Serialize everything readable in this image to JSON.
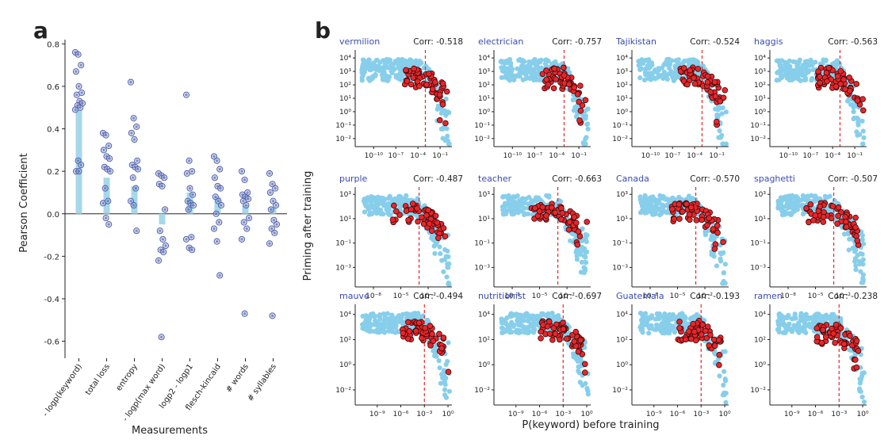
{
  "colors": {
    "bar": "#a6d8ea",
    "dot_fill": "#9aa8d8",
    "dot_stroke": "#4a5aa8",
    "light_blue": "#87ceeb",
    "red": "#e8262b",
    "red_stroke": "#3a0a0a",
    "title_blue": "#3a4bb0",
    "vline": "#e8262b"
  },
  "panel_a": {
    "letter": "a",
    "ylabel": "Pearson Coefficient",
    "xlabel": "Measurements",
    "y_ticks": [
      "0.8",
      "0.6",
      "0.4",
      "0.2",
      "0.0",
      "-0.2",
      "-0.4",
      "-0.6"
    ],
    "chart_data": {
      "type": "bar",
      "categories": [
        "- logp(keyword)",
        "total loss",
        "entropy",
        "- logp(max word)",
        "logp2 - logp1",
        "flesch-kincaid",
        "# words",
        "# syllables"
      ],
      "values": [
        0.49,
        0.17,
        0.13,
        -0.05,
        0.1,
        0.08,
        0.04,
        0.03
      ],
      "ylim": [
        -0.68,
        0.82
      ],
      "points": [
        [
          0.76,
          0.75,
          0.7,
          0.67,
          0.6,
          0.57,
          0.56,
          0.53,
          0.52,
          0.51,
          0.5,
          0.49,
          0.25,
          0.23,
          0.2,
          0.2
        ],
        [
          0.38,
          0.37,
          0.32,
          0.3,
          0.27,
          0.26,
          0.22,
          0.21,
          0.2,
          0.12,
          0.06,
          0.05,
          -0.02,
          -0.05
        ],
        [
          0.62,
          0.45,
          0.41,
          0.38,
          0.35,
          0.25,
          0.23,
          0.22,
          0.21,
          0.17,
          0.12,
          0.06,
          0.04,
          -0.08
        ],
        [
          0.19,
          0.18,
          0.17,
          0.14,
          0.13,
          0.02,
          -0.08,
          -0.12,
          -0.15,
          -0.17,
          -0.18,
          -0.22,
          -0.58
        ],
        [
          0.56,
          0.25,
          0.2,
          0.19,
          0.12,
          0.09,
          0.06,
          0.05,
          0.04,
          0.02,
          -0.11,
          -0.12,
          -0.16,
          -0.17
        ],
        [
          0.27,
          0.25,
          0.21,
          0.17,
          0.13,
          0.12,
          0.08,
          0.06,
          0.04,
          0.0,
          -0.04,
          -0.07,
          -0.13,
          -0.29
        ],
        [
          0.2,
          0.16,
          0.1,
          0.09,
          0.08,
          0.07,
          0.06,
          0.04,
          -0.02,
          -0.04,
          -0.07,
          -0.12,
          -0.47
        ],
        [
          0.19,
          0.14,
          0.12,
          0.1,
          0.06,
          0.04,
          0.02,
          -0.03,
          -0.05,
          -0.07,
          -0.09,
          -0.14,
          -0.48
        ]
      ]
    }
  },
  "panel_b": {
    "letter": "b",
    "ylabel": "Priming after training",
    "xlabel": "P(keyword) before training",
    "corr_prefix": "Corr: ",
    "rows": [
      {
        "xlim": [
          -12.5,
          0.6
        ],
        "ylim": [
          -2.6,
          4.6
        ],
        "x_ticks": [
          -10,
          -7,
          -4,
          -1
        ],
        "y_ticks": [
          -2,
          -1,
          0,
          1,
          2,
          3,
          4
        ],
        "panels": [
          {
            "word": "vermilion",
            "corr": "-0.518",
            "vline": -3.0
          },
          {
            "word": "electrician",
            "corr": "-0.757",
            "vline": -3.0
          },
          {
            "word": "Tajikistan",
            "corr": "-0.524",
            "vline": -3.0
          },
          {
            "word": "haggis",
            "corr": "-0.563",
            "vline": -3.0
          }
        ]
      },
      {
        "xlim": [
          -10.0,
          0.6
        ],
        "ylim": [
          -4.6,
          3.6
        ],
        "x_ticks": [
          -8,
          -5,
          -2
        ],
        "y_ticks": [
          -3,
          -1,
          1,
          3
        ],
        "panels": [
          {
            "word": "purple",
            "corr": "-0.487",
            "vline": -3.0
          },
          {
            "word": "teacher",
            "corr": "-0.663",
            "vline": -3.0
          },
          {
            "word": "Canada",
            "corr": "-0.570",
            "vline": -3.0
          },
          {
            "word": "spaghetti",
            "corr": "-0.507",
            "vline": -3.0
          }
        ]
      },
      {
        "xlim": [
          -11.8,
          0.5
        ],
        "ylim": [
          -3.2,
          4.8
        ],
        "x_ticks": [
          -9,
          -6,
          -3,
          0
        ],
        "y_ticks": [
          -2,
          0,
          2,
          4
        ],
        "panels": [
          {
            "word": "mauve",
            "corr": "-0.494",
            "vline": -3.0
          },
          {
            "word": "nutritionist",
            "corr": "-0.697",
            "vline": -3.0
          },
          {
            "word": "Guatemala",
            "corr": "-0.193",
            "vline": -3.0
          },
          {
            "word": "ramen",
            "corr": "-0.238",
            "vline": -3.0
          }
        ]
      }
    ]
  }
}
